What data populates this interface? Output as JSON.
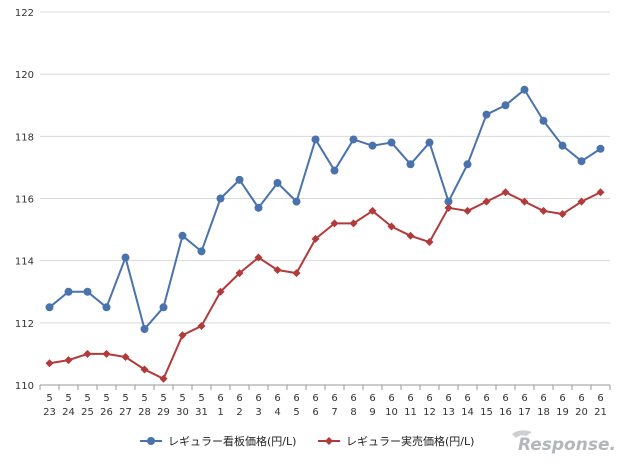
{
  "chart_data": {
    "type": "line",
    "categories": [
      {
        "month": "5",
        "day": "23"
      },
      {
        "month": "5",
        "day": "24"
      },
      {
        "month": "5",
        "day": "25"
      },
      {
        "month": "5",
        "day": "26"
      },
      {
        "month": "5",
        "day": "27"
      },
      {
        "month": "5",
        "day": "28"
      },
      {
        "month": "5",
        "day": "29"
      },
      {
        "month": "5",
        "day": "30"
      },
      {
        "month": "5",
        "day": "31"
      },
      {
        "month": "6",
        "day": "1"
      },
      {
        "month": "6",
        "day": "2"
      },
      {
        "month": "6",
        "day": "3"
      },
      {
        "month": "6",
        "day": "4"
      },
      {
        "month": "6",
        "day": "5"
      },
      {
        "month": "6",
        "day": "6"
      },
      {
        "month": "6",
        "day": "7"
      },
      {
        "month": "6",
        "day": "8"
      },
      {
        "month": "6",
        "day": "9"
      },
      {
        "month": "6",
        "day": "10"
      },
      {
        "month": "6",
        "day": "11"
      },
      {
        "month": "6",
        "day": "12"
      },
      {
        "month": "6",
        "day": "13"
      },
      {
        "month": "6",
        "day": "14"
      },
      {
        "month": "6",
        "day": "15"
      },
      {
        "month": "6",
        "day": "16"
      },
      {
        "month": "6",
        "day": "17"
      },
      {
        "month": "6",
        "day": "18"
      },
      {
        "month": "6",
        "day": "19"
      },
      {
        "month": "6",
        "day": "20"
      },
      {
        "month": "6",
        "day": "21"
      }
    ],
    "series": [
      {
        "name": "レギュラー看板価格(円/L)",
        "color": "#4a72ad",
        "marker": "circle",
        "values": [
          112.5,
          113.0,
          113.0,
          112.5,
          114.1,
          111.8,
          112.5,
          114.8,
          114.3,
          116.0,
          116.6,
          115.7,
          116.5,
          115.9,
          117.9,
          116.9,
          117.9,
          117.7,
          117.8,
          117.1,
          117.8,
          115.9,
          117.1,
          118.7,
          119.0,
          119.5,
          118.5,
          117.7,
          117.2,
          117.6
        ]
      },
      {
        "name": "レギュラー実売価格(円/L)",
        "color": "#b33a3a",
        "marker": "diamond",
        "values": [
          110.7,
          110.8,
          111.0,
          111.0,
          110.9,
          110.5,
          110.2,
          111.6,
          111.9,
          113.0,
          113.6,
          114.1,
          113.7,
          113.6,
          114.7,
          115.2,
          115.2,
          115.6,
          115.1,
          114.8,
          114.6,
          115.7,
          115.6,
          115.9,
          116.2,
          115.9,
          115.6,
          115.5,
          115.9,
          116.2
        ]
      }
    ],
    "yticks": [
      110,
      112,
      114,
      116,
      118,
      120,
      122
    ],
    "ylim": [
      110,
      122
    ],
    "grid": true,
    "legend_position": "bottom",
    "title": "",
    "xlabel": "",
    "ylabel": ""
  },
  "watermark": {
    "text": "Response.",
    "color": "#9aa0a6"
  }
}
